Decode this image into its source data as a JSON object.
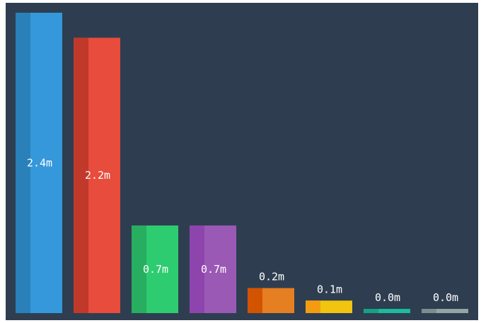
{
  "chart_data": {
    "type": "bar",
    "categories": [
      "",
      "",
      "",
      "",
      "",
      "",
      "",
      ""
    ],
    "values": [
      2.4,
      2.2,
      0.7,
      0.7,
      0.2,
      0.1,
      0.0,
      0.0
    ],
    "value_labels": [
      "2.4m",
      "2.2m",
      "0.7m",
      "0.7m",
      "0.2m",
      "0.1m",
      "0.0m",
      "0.0m"
    ],
    "ylim": [
      0,
      2.4
    ],
    "grid": false,
    "colors": [
      {
        "main": "#3498db",
        "shade": "#2a80b9"
      },
      {
        "main": "#e74c3c",
        "shade": "#c0392b"
      },
      {
        "main": "#2ecc71",
        "shade": "#27ae60"
      },
      {
        "main": "#9b59b6",
        "shade": "#8e44ad"
      },
      {
        "main": "#e67e22",
        "shade": "#d35400"
      },
      {
        "main": "#f1c40f",
        "shade": "#f39c12"
      },
      {
        "main": "#1abc9c",
        "shade": "#16a085"
      },
      {
        "main": "#95a5a6",
        "shade": "#7f8c8d"
      }
    ],
    "background": "#2e3e50"
  }
}
